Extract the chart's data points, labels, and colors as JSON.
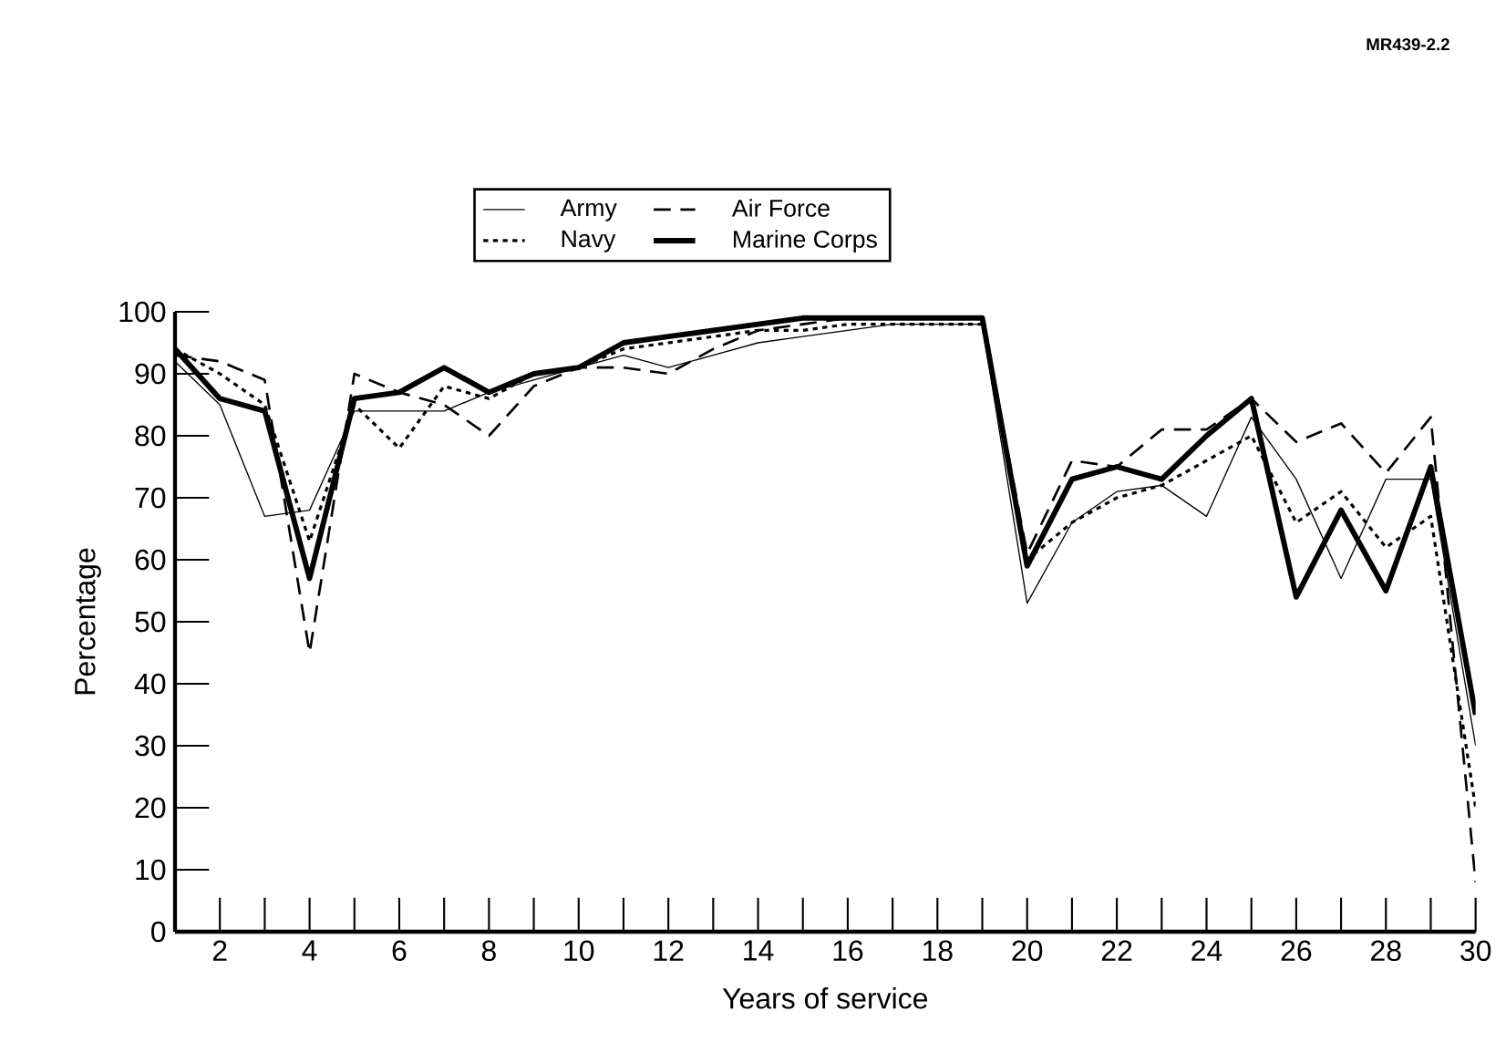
{
  "chart_data": {
    "type": "line",
    "xlabel": "Years of service",
    "ylabel": "Percentage",
    "annotations": [
      "MR439-2.2"
    ],
    "x": [
      1,
      2,
      3,
      4,
      5,
      6,
      7,
      8,
      9,
      10,
      11,
      12,
      13,
      14,
      15,
      16,
      17,
      18,
      19,
      20,
      21,
      22,
      23,
      24,
      25,
      26,
      27,
      28,
      29,
      30
    ],
    "series": [
      {
        "name": "Army",
        "color": "#000000",
        "line_style": "solid",
        "values": [
          92,
          85,
          67,
          68,
          84,
          84,
          84,
          87,
          89,
          91,
          93,
          91,
          93,
          95,
          96,
          97,
          98,
          98,
          98,
          53,
          66,
          71,
          72,
          67,
          83,
          73,
          57,
          73,
          73,
          30
        ]
      },
      {
        "name": "Air Force",
        "color": "#000000",
        "line_style": "dashed",
        "values": [
          93,
          92,
          89,
          45,
          90,
          87,
          85,
          80,
          88,
          91,
          91,
          90,
          94,
          97,
          98,
          99,
          99,
          99,
          99,
          61,
          76,
          75,
          81,
          81,
          86,
          79,
          82,
          74,
          83,
          8
        ]
      },
      {
        "name": "Navy",
        "color": "#000000",
        "line_style": "dotted",
        "values": [
          94,
          90,
          85,
          63,
          85,
          78,
          88,
          86,
          90,
          91,
          94,
          95,
          96,
          97,
          97,
          98,
          98,
          98,
          98,
          60,
          66,
          70,
          72,
          76,
          80,
          66,
          71,
          62,
          67,
          20
        ]
      },
      {
        "name": "Marine Corps",
        "color": "#000000",
        "line_style": "solid",
        "values": [
          94,
          86,
          84,
          57,
          86,
          87,
          91,
          87,
          90,
          91,
          95,
          96,
          97,
          98,
          99,
          99,
          99,
          99,
          99,
          59,
          73,
          75,
          73,
          80,
          86,
          54,
          68,
          55,
          75,
          35
        ]
      }
    ],
    "xlim": [
      1,
      30
    ],
    "ylim": [
      0,
      100
    ],
    "xticks": [
      2,
      4,
      6,
      8,
      10,
      12,
      14,
      16,
      18,
      20,
      22,
      24,
      26,
      28,
      30
    ],
    "yticks": [
      0,
      10,
      20,
      30,
      40,
      50,
      60,
      70,
      80,
      90,
      100
    ],
    "grid": false,
    "legend": "top",
    "marker": "none"
  }
}
